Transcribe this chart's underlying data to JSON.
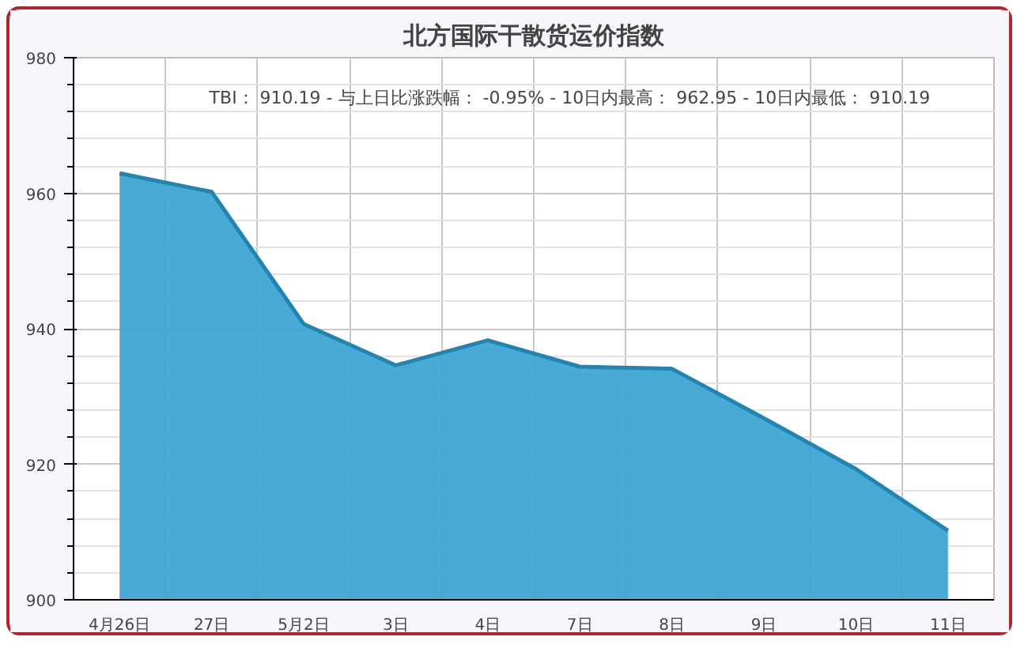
{
  "chart_data": {
    "type": "area",
    "title": "北方国际干散货运价指数",
    "categories": [
      "4月26日",
      "27日",
      "5月2日",
      "3日",
      "4日",
      "7日",
      "8日",
      "9日",
      "10日",
      "11日"
    ],
    "series": [
      {
        "color": "#3fa6d3",
        "values": [
          962.95,
          960.2,
          940.7,
          934.6,
          938.3,
          934.4,
          934.1,
          926.8,
          919.3,
          910.19
        ]
      }
    ],
    "ylim": [
      900,
      980
    ],
    "yticks": [
      900,
      920,
      940,
      960,
      980
    ],
    "grid": true,
    "annotations": [
      "TBI：  910.19  - 与上日比涨跌幅：  -0.95%  - 10日内最高：  962.95  - 10日内最低：  910.19"
    ]
  }
}
